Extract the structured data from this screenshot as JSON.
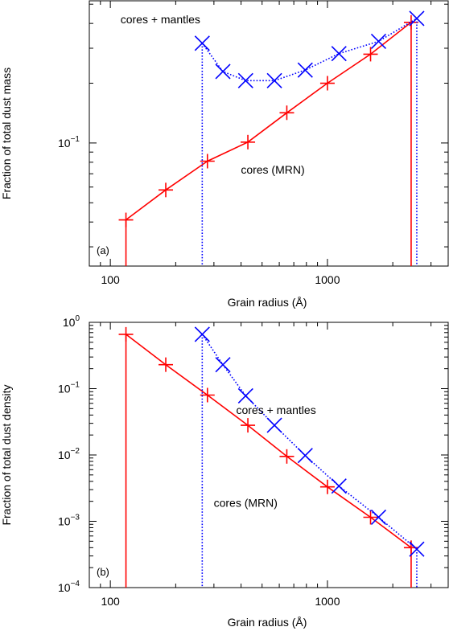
{
  "chart_data": [
    {
      "type": "line",
      "panel_label": "(a)",
      "xlabel": "Grain radius (Å)",
      "ylabel": "Fraction of total dust mass",
      "xscale": "log",
      "yscale": "log",
      "xlim": [
        80,
        3600
      ],
      "ylim": [
        0.024,
        0.52
      ],
      "x_ticks": [
        {
          "value": 100,
          "label": "100"
        },
        {
          "value": 1000,
          "label": "1000"
        }
      ],
      "y_ticks": [
        {
          "value": 0.1,
          "base": "10",
          "exp": "−1"
        }
      ],
      "grid": false,
      "series": [
        {
          "name": "cores (MRN)",
          "color": "#ff0000",
          "line": "solid",
          "marker": "plus",
          "drop_x": [
            118,
            2430
          ],
          "x": [
            118,
            180,
            280,
            430,
            650,
            1000,
            1580,
            2430
          ],
          "y": [
            0.041,
            0.058,
            0.081,
            0.101,
            0.142,
            0.2,
            0.28,
            0.405
          ]
        },
        {
          "name": "cores + mantles",
          "color": "#0000ff",
          "line": "dotted",
          "marker": "x",
          "drop_x": [
            265,
            2580
          ],
          "x": [
            265,
            330,
            420,
            570,
            790,
            1130,
            1720,
            2580
          ],
          "y": [
            0.318,
            0.229,
            0.206,
            0.206,
            0.233,
            0.282,
            0.325,
            0.424
          ]
        }
      ],
      "annotations": [
        {
          "text": "cores + mantles",
          "x": 170,
          "y": 0.42
        },
        {
          "text": "cores (MRN)",
          "x": 560,
          "y": 0.0735
        }
      ]
    },
    {
      "type": "line",
      "panel_label": "(b)",
      "xlabel": "Grain radius (Å)",
      "ylabel": "Fraction of total dust density",
      "xscale": "log",
      "yscale": "log",
      "xlim": [
        80,
        3600
      ],
      "ylim": [
        0.0001,
        1.0
      ],
      "x_ticks": [
        {
          "value": 100,
          "label": "100"
        },
        {
          "value": 1000,
          "label": "1000"
        }
      ],
      "y_ticks": [
        {
          "value": 1.0,
          "base": "10",
          "exp": "0"
        },
        {
          "value": 0.1,
          "base": "10",
          "exp": "−1"
        },
        {
          "value": 0.01,
          "base": "10",
          "exp": "−2"
        },
        {
          "value": 0.001,
          "base": "10",
          "exp": "−3"
        },
        {
          "value": 0.0001,
          "base": "10",
          "exp": "−4"
        }
      ],
      "grid": false,
      "series": [
        {
          "name": "cores (MRN)",
          "color": "#ff0000",
          "line": "solid",
          "marker": "plus",
          "drop_x": [
            118,
            2430
          ],
          "x": [
            118,
            180,
            280,
            430,
            650,
            1000,
            1580,
            2430
          ],
          "y": [
            0.66,
            0.23,
            0.08,
            0.028,
            0.0095,
            0.0033,
            0.00115,
            0.0004
          ]
        },
        {
          "name": "cores + mantles",
          "color": "#0000ff",
          "line": "dotted",
          "marker": "x",
          "drop_x": [
            265,
            2580
          ],
          "x": [
            265,
            330,
            420,
            570,
            790,
            1130,
            1720,
            2580
          ],
          "y": [
            0.66,
            0.23,
            0.078,
            0.028,
            0.0098,
            0.0034,
            0.00115,
            0.00038
          ]
        }
      ],
      "annotations": [
        {
          "text": "cores + mantles",
          "x": 580,
          "y": 0.048
        },
        {
          "text": "cores (MRN)",
          "x": 420,
          "y": 0.0019
        }
      ]
    }
  ]
}
